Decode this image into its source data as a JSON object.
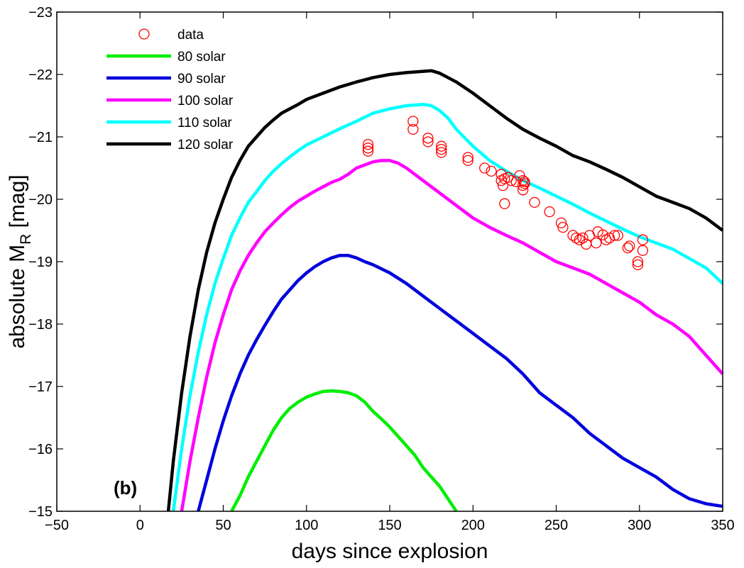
{
  "chart_data": {
    "type": "line",
    "title": "",
    "xlabel": "days since explosion",
    "ylabel_main": "absolute M",
    "ylabel_sub": "R",
    "ylabel_unit": " [mag]",
    "panel_label": "(b)",
    "xlim": [
      -50,
      350
    ],
    "ylim": [
      -15,
      -23
    ],
    "y_reversed": true,
    "grid": false,
    "legend_position": "top-left",
    "x_ticks": [
      -50,
      0,
      50,
      100,
      150,
      200,
      250,
      300,
      350
    ],
    "x_tick_labels": [
      "−50",
      "0",
      "50",
      "100",
      "150",
      "200",
      "250",
      "300",
      "350"
    ],
    "y_ticks": [
      -15,
      -16,
      -17,
      -18,
      -19,
      -20,
      -21,
      -22,
      -23
    ],
    "y_tick_labels": [
      "−15",
      "−16",
      "−17",
      "−18",
      "−19",
      "−20",
      "−21",
      "−22",
      "−23"
    ],
    "legend": [
      {
        "label": "data",
        "kind": "marker",
        "color": "#ff0000"
      },
      {
        "label": "80 solar",
        "kind": "line",
        "color": "#00ee00"
      },
      {
        "label": "90 solar",
        "kind": "line",
        "color": "#0000dd"
      },
      {
        "label": "100 solar",
        "kind": "line",
        "color": "#ff00ff"
      },
      {
        "label": "110 solar",
        "kind": "line",
        "color": "#00ffff"
      },
      {
        "label": "120 solar",
        "kind": "line",
        "color": "#000000"
      }
    ],
    "series": [
      {
        "name": "80 solar",
        "color": "#00ee00",
        "x": [
          55,
          60,
          65,
          70,
          75,
          80,
          85,
          90,
          95,
          100,
          105,
          110,
          115,
          120,
          125,
          130,
          135,
          140,
          145,
          150,
          155,
          160,
          165,
          170,
          175,
          180,
          185,
          190
        ],
        "y": [
          -15.0,
          -15.25,
          -15.55,
          -15.8,
          -16.05,
          -16.3,
          -16.5,
          -16.65,
          -16.75,
          -16.83,
          -16.88,
          -16.92,
          -16.93,
          -16.92,
          -16.9,
          -16.85,
          -16.75,
          -16.6,
          -16.48,
          -16.35,
          -16.2,
          -16.05,
          -15.9,
          -15.7,
          -15.55,
          -15.4,
          -15.2,
          -15.0
        ]
      },
      {
        "name": "90 solar",
        "color": "#0000dd",
        "x": [
          35,
          40,
          45,
          50,
          55,
          60,
          65,
          70,
          75,
          80,
          85,
          90,
          95,
          100,
          105,
          110,
          115,
          120,
          125,
          130,
          135,
          140,
          150,
          160,
          170,
          180,
          190,
          200,
          210,
          220,
          230,
          240,
          250,
          260,
          270,
          280,
          290,
          300,
          310,
          320,
          330,
          340,
          350
        ],
        "y": [
          -15.0,
          -15.5,
          -16.0,
          -16.45,
          -16.85,
          -17.2,
          -17.5,
          -17.75,
          -17.98,
          -18.2,
          -18.4,
          -18.55,
          -18.7,
          -18.82,
          -18.92,
          -19.0,
          -19.06,
          -19.1,
          -19.1,
          -19.06,
          -19.0,
          -18.95,
          -18.82,
          -18.65,
          -18.45,
          -18.25,
          -18.05,
          -17.85,
          -17.65,
          -17.45,
          -17.2,
          -16.9,
          -16.7,
          -16.5,
          -16.25,
          -16.05,
          -15.85,
          -15.7,
          -15.55,
          -15.35,
          -15.2,
          -15.12,
          -15.08
        ]
      },
      {
        "name": "100 solar",
        "color": "#ff00ff",
        "x": [
          25,
          30,
          35,
          40,
          45,
          50,
          55,
          60,
          65,
          70,
          75,
          80,
          85,
          90,
          95,
          100,
          105,
          110,
          115,
          120,
          125,
          130,
          135,
          140,
          145,
          150,
          155,
          160,
          170,
          180,
          190,
          200,
          210,
          220,
          230,
          240,
          250,
          260,
          270,
          280,
          290,
          300,
          310,
          320,
          330,
          340,
          350
        ],
        "y": [
          -15.0,
          -15.8,
          -16.5,
          -17.15,
          -17.7,
          -18.15,
          -18.55,
          -18.85,
          -19.1,
          -19.3,
          -19.48,
          -19.62,
          -19.75,
          -19.87,
          -19.97,
          -20.05,
          -20.13,
          -20.2,
          -20.27,
          -20.32,
          -20.4,
          -20.5,
          -20.55,
          -20.6,
          -20.62,
          -20.62,
          -20.58,
          -20.5,
          -20.3,
          -20.1,
          -19.9,
          -19.7,
          -19.55,
          -19.42,
          -19.3,
          -19.15,
          -19.0,
          -18.9,
          -18.8,
          -18.65,
          -18.5,
          -18.35,
          -18.15,
          -18.0,
          -17.8,
          -17.5,
          -17.2
        ]
      },
      {
        "name": "110 solar",
        "color": "#00ffff",
        "x": [
          20,
          25,
          30,
          35,
          40,
          45,
          50,
          55,
          60,
          65,
          70,
          75,
          80,
          85,
          90,
          95,
          100,
          110,
          120,
          130,
          140,
          150,
          160,
          170,
          175,
          180,
          185,
          190,
          200,
          210,
          220,
          230,
          240,
          250,
          260,
          270,
          280,
          290,
          300,
          310,
          320,
          330,
          340,
          350
        ],
        "y": [
          -15.0,
          -16.0,
          -16.85,
          -17.55,
          -18.15,
          -18.65,
          -19.05,
          -19.42,
          -19.7,
          -19.95,
          -20.12,
          -20.3,
          -20.45,
          -20.57,
          -20.68,
          -20.78,
          -20.87,
          -21.0,
          -21.13,
          -21.25,
          -21.38,
          -21.45,
          -21.5,
          -21.52,
          -21.5,
          -21.42,
          -21.3,
          -21.12,
          -20.85,
          -20.62,
          -20.45,
          -20.3,
          -20.18,
          -20.05,
          -19.92,
          -19.78,
          -19.65,
          -19.52,
          -19.4,
          -19.3,
          -19.2,
          -19.05,
          -18.9,
          -18.65
        ]
      },
      {
        "name": "120 solar",
        "color": "#000000",
        "x": [
          17,
          20,
          25,
          30,
          35,
          40,
          45,
          50,
          55,
          60,
          65,
          70,
          75,
          80,
          85,
          90,
          95,
          100,
          110,
          120,
          130,
          140,
          150,
          160,
          170,
          175,
          180,
          190,
          200,
          210,
          220,
          230,
          240,
          250,
          260,
          270,
          280,
          290,
          300,
          310,
          320,
          330,
          340,
          350
        ],
        "y": [
          -15.0,
          -15.8,
          -16.9,
          -17.8,
          -18.55,
          -19.15,
          -19.62,
          -20.0,
          -20.35,
          -20.62,
          -20.85,
          -21.0,
          -21.15,
          -21.27,
          -21.38,
          -21.45,
          -21.52,
          -21.6,
          -21.7,
          -21.8,
          -21.88,
          -21.95,
          -22.0,
          -22.03,
          -22.05,
          -22.06,
          -22.02,
          -21.88,
          -21.7,
          -21.5,
          -21.3,
          -21.12,
          -20.98,
          -20.85,
          -20.7,
          -20.6,
          -20.48,
          -20.35,
          -20.2,
          -20.05,
          -19.95,
          -19.85,
          -19.7,
          -19.5
        ]
      }
    ],
    "scatter": {
      "name": "data",
      "color": "#ff0000",
      "x": [
        137,
        137,
        137,
        164,
        164,
        173,
        173,
        181,
        181,
        181,
        197,
        197,
        207,
        211,
        217,
        217,
        218,
        219,
        219,
        221,
        223,
        226,
        228,
        230,
        230,
        230,
        231,
        231,
        237,
        246,
        253,
        254,
        260,
        262,
        264,
        266,
        268,
        270,
        274,
        275,
        278,
        280,
        282,
        285,
        287,
        293,
        294,
        299,
        299,
        302,
        302
      ],
      "y": [
        -20.88,
        -20.82,
        -20.77,
        -21.25,
        -21.12,
        -20.98,
        -20.92,
        -20.85,
        -20.8,
        -20.75,
        -20.67,
        -20.62,
        -20.5,
        -20.45,
        -20.4,
        -20.3,
        -20.22,
        -19.93,
        -20.33,
        -20.35,
        -20.3,
        -20.28,
        -20.38,
        -20.3,
        -20.22,
        -20.15,
        -20.28,
        -20.25,
        -19.95,
        -19.8,
        -19.62,
        -19.55,
        -19.42,
        -19.38,
        -19.35,
        -19.38,
        -19.28,
        -19.42,
        -19.3,
        -19.48,
        -19.43,
        -19.35,
        -19.38,
        -19.42,
        -19.42,
        -19.22,
        -19.25,
        -19.0,
        -18.95,
        -19.35,
        -19.18
      ]
    }
  }
}
